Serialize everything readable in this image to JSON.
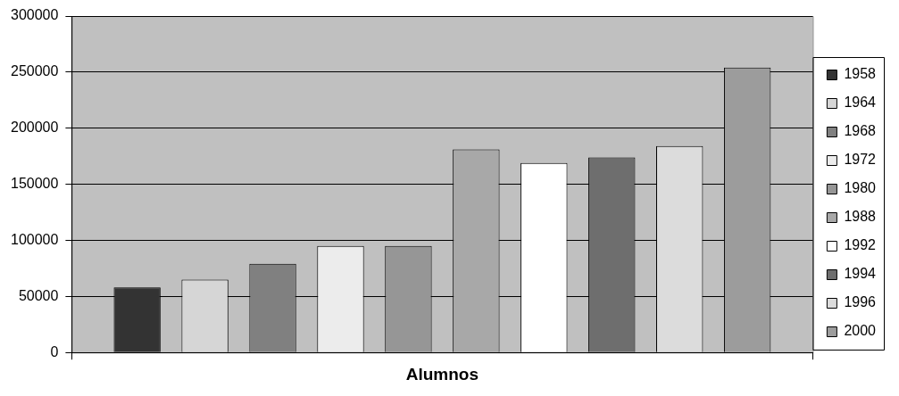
{
  "chart_data": {
    "type": "bar",
    "categories": [
      "Alumnos"
    ],
    "series": [
      {
        "name": "1958",
        "color": "#333333",
        "values": [
          58000
        ]
      },
      {
        "name": "1964",
        "color": "#d6d6d6",
        "values": [
          65000
        ]
      },
      {
        "name": "1968",
        "color": "#808080",
        "values": [
          79000
        ]
      },
      {
        "name": "1972",
        "color": "#ececec",
        "values": [
          95000
        ]
      },
      {
        "name": "1980",
        "color": "#969696",
        "values": [
          95000
        ]
      },
      {
        "name": "1988",
        "color": "#a8a8a8",
        "values": [
          181000
        ]
      },
      {
        "name": "1992",
        "color": "#ffffff",
        "values": [
          169000
        ]
      },
      {
        "name": "1994",
        "color": "#6e6e6e",
        "values": [
          174000
        ]
      },
      {
        "name": "1996",
        "color": "#dcdcdc",
        "values": [
          184000
        ]
      },
      {
        "name": "2000",
        "color": "#9c9c9c",
        "values": [
          254000
        ]
      }
    ],
    "ylim": [
      0,
      300000
    ],
    "yticks": [
      0,
      50000,
      100000,
      150000,
      200000,
      250000,
      300000
    ],
    "grid": "y",
    "legend": "right"
  }
}
